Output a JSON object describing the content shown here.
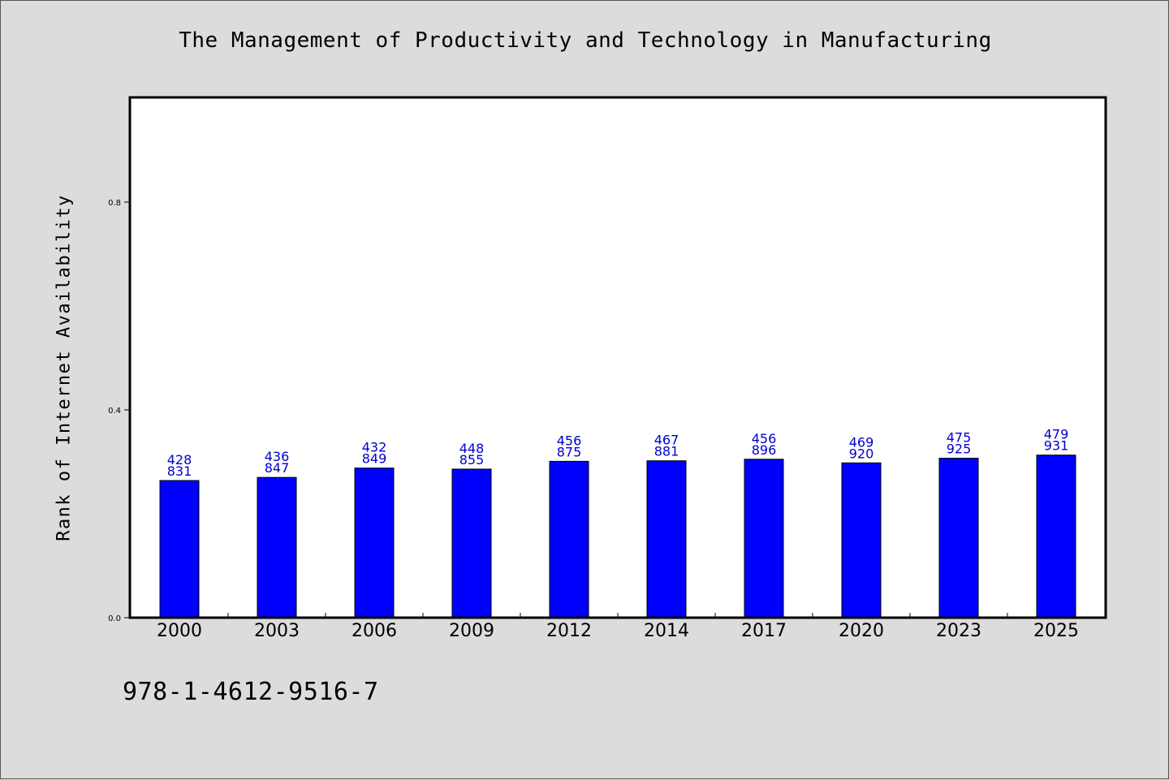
{
  "chart_data": {
    "type": "bar",
    "title": "The Management of Productivity and Technology in Manufacturing",
    "xlabel": "",
    "ylabel": "Rank of Internet Availability",
    "categories": [
      "2000",
      "2003",
      "2006",
      "2009",
      "2012",
      "2014",
      "2017",
      "2020",
      "2023",
      "2025"
    ],
    "values": [
      0.264,
      0.27,
      0.288,
      0.286,
      0.301,
      0.302,
      0.305,
      0.298,
      0.307,
      0.313
    ],
    "labels_top": [
      "428",
      "436",
      "432",
      "448",
      "456",
      "467",
      "456",
      "469",
      "475",
      "479"
    ],
    "labels_bottom": [
      "831",
      "847",
      "849",
      "855",
      "875",
      "881",
      "896",
      "920",
      "925",
      "931"
    ],
    "ylim": [
      0,
      1.0
    ],
    "yticks": [
      0.0,
      0.4,
      0.8
    ],
    "ytick_labels": [
      "0.0",
      "0.4",
      "0.8"
    ],
    "bar_color": "#0000ff",
    "label_color": "#0000cc",
    "grid": false,
    "legend": "none"
  },
  "footer": {
    "isbn": "978-1-4612-9516-7"
  }
}
